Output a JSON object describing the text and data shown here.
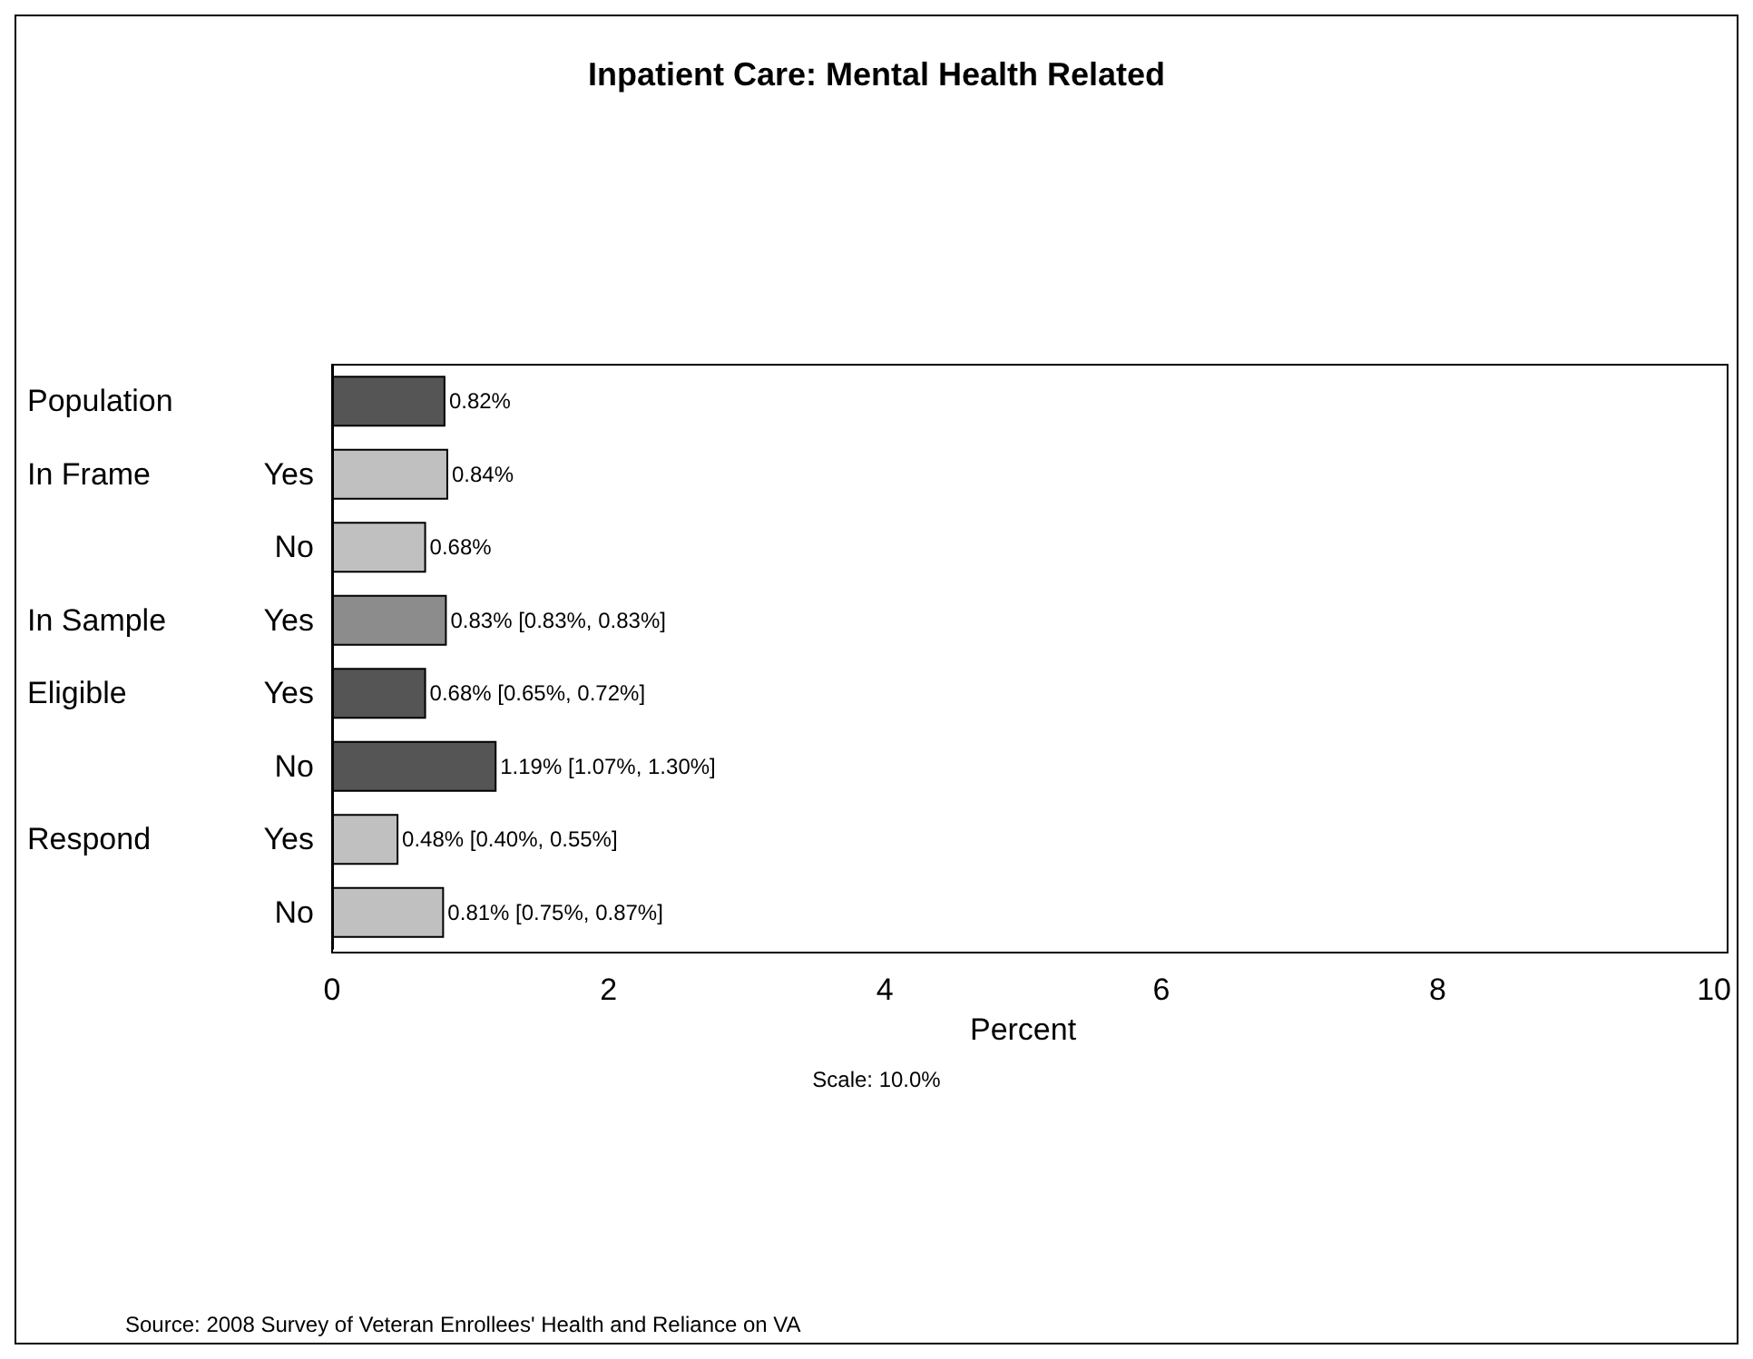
{
  "chart_data": {
    "type": "bar",
    "orientation": "horizontal",
    "title": "Inpatient Care: Mental Health Related",
    "xlabel": "Percent",
    "categories": [
      null,
      "Yes",
      "No",
      "Yes",
      "Yes",
      "No",
      "Yes",
      "No"
    ],
    "values": [
      0.82,
      0.84,
      0.68,
      0.83,
      0.68,
      1.19,
      0.48,
      0.81
    ],
    "colors": [
      "#555555",
      "#c0c0c0",
      "#c0c0c0",
      "#8c8c8c",
      "#555555",
      "#555555",
      "#c0c0c0",
      "#c0c0c0"
    ],
    "value_labels": [
      "0.82%",
      "0.84%",
      "0.68%",
      "0.83% [0.83%, 0.83%]",
      "0.68% [0.65%, 0.72%]",
      "1.19% [1.07%, 1.30%]",
      "0.48% [0.40%, 0.55%]",
      "0.81% [0.75%, 0.87%]"
    ],
    "xlim": [
      0,
      10
    ],
    "xticks": [
      0,
      2,
      4,
      6,
      8,
      10
    ],
    "grid": false,
    "annotations": [
      "Population",
      "In Frame",
      "In Sample",
      "Eligible",
      "Respond",
      "Scale: 10.0%",
      "Source: 2008 Survey of Veteran Enrollees' Health and Reliance on VA"
    ]
  }
}
